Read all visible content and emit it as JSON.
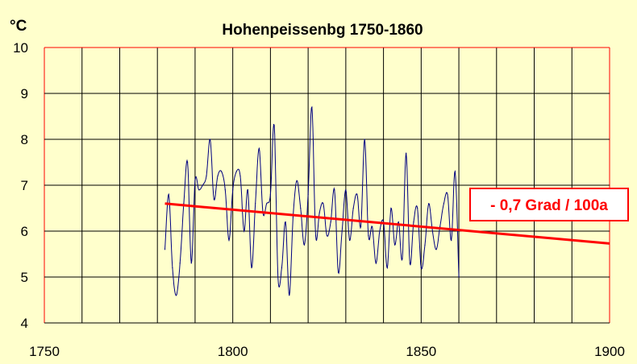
{
  "chart_data": {
    "type": "line",
    "title": "Hohenpeissenbg 1750-1860",
    "ylabel": "°C",
    "xlabel": "",
    "xlim": [
      1750,
      1900
    ],
    "ylim": [
      4,
      10
    ],
    "x_ticks": [
      "1750",
      "1800",
      "1850",
      "1900"
    ],
    "y_ticks": [
      "4",
      "5",
      "6",
      "7",
      "8",
      "9",
      "10"
    ],
    "grid": true,
    "colors": {
      "background": "#ffffcc",
      "plot_bg": "#ffffcc",
      "grid": "#000000",
      "series": "#000080",
      "trend": "#ff0000"
    },
    "series": [
      {
        "values_x": [
          1782,
          1783,
          1784,
          1785,
          1786,
          1787,
          1788,
          1789,
          1790,
          1791,
          1792,
          1793,
          1794,
          1795,
          1796,
          1797,
          1798,
          1799,
          1800,
          1801,
          1802,
          1803,
          1804,
          1805,
          1806,
          1807,
          1808,
          1809,
          1810,
          1811,
          1812,
          1813,
          1814,
          1815,
          1816,
          1817,
          1818,
          1819,
          1820,
          1821,
          1822,
          1823,
          1824,
          1825,
          1826,
          1827,
          1828,
          1829,
          1830,
          1831,
          1832,
          1833,
          1834,
          1835,
          1836,
          1837,
          1838,
          1839,
          1840,
          1841,
          1842,
          1843,
          1844,
          1845,
          1846,
          1847,
          1848,
          1849,
          1850,
          1851,
          1852,
          1853,
          1854,
          1855,
          1856,
          1857,
          1858,
          1859,
          1860
        ],
        "values_y": [
          5.6,
          6.8,
          5.2,
          4.6,
          5.3,
          6.6,
          7.5,
          5.3,
          7.1,
          6.9,
          7.0,
          7.2,
          8.0,
          6.7,
          7.2,
          7.3,
          6.9,
          5.8,
          6.9,
          7.3,
          7.2,
          6.0,
          6.9,
          5.2,
          6.6,
          7.8,
          6.4,
          6.6,
          6.8,
          8.3,
          5.0,
          5.2,
          6.2,
          4.6,
          6.3,
          7.1,
          6.5,
          5.7,
          6.8,
          8.7,
          5.9,
          6.4,
          6.6,
          5.9,
          6.2,
          6.9,
          5.1,
          6.0,
          6.9,
          5.8,
          6.5,
          6.8,
          6.1,
          8.0,
          5.9,
          6.1,
          5.3,
          6.0,
          6.2,
          5.2,
          6.5,
          5.7,
          6.2,
          5.4,
          7.7,
          5.3,
          6.2,
          6.5,
          5.2,
          5.7,
          6.6,
          6.0,
          5.6,
          6.1,
          6.6,
          6.8,
          5.8,
          7.3,
          5.0
        ]
      },
      {
        "name": "trend",
        "values_x": [
          1782,
          1900
        ],
        "values_y": [
          6.6,
          5.73
        ]
      }
    ],
    "annotation": "- 0,7 Grad / 100a"
  }
}
